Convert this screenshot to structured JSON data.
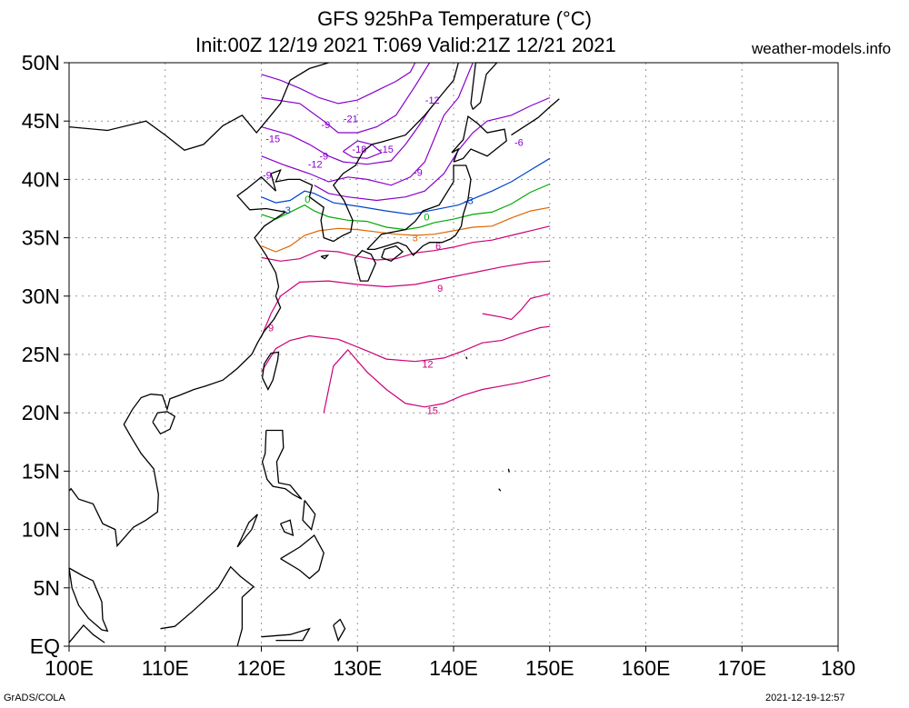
{
  "title": {
    "line1": "GFS 925hPa Temperature (°C)",
    "line2": "Init:00Z 12/19 2021 T:069 Valid:21Z 12/21 2021",
    "site": "weather-models.info"
  },
  "footer": {
    "left": "GrADS/COLA",
    "right": "2021-12-19-12:57"
  },
  "axes": {
    "lat_labels": [
      "50N",
      "45N",
      "40N",
      "35N",
      "30N",
      "25N",
      "20N",
      "15N",
      "10N",
      "5N",
      "EQ"
    ],
    "lat_values": [
      50,
      45,
      40,
      35,
      30,
      25,
      20,
      15,
      10,
      5,
      0
    ],
    "lon_labels": [
      "100E",
      "110E",
      "120E",
      "130E",
      "140E",
      "150E",
      "160E",
      "170E",
      "180"
    ],
    "lon_values": [
      100,
      110,
      120,
      130,
      140,
      150,
      160,
      170,
      180
    ],
    "lon_range": [
      100,
      180
    ],
    "lat_range": [
      0,
      50
    ],
    "grid": "dotted"
  },
  "contour_labels": [
    {
      "text": "-12",
      "lon": 137.8,
      "lat": 46.8,
      "color": "#8800cc"
    },
    {
      "text": "-21",
      "lon": 129.3,
      "lat": 45.2,
      "color": "#8800cc"
    },
    {
      "text": "-9",
      "lon": 126.7,
      "lat": 44.7,
      "color": "#8800cc"
    },
    {
      "text": "-15",
      "lon": 121.2,
      "lat": 43.5,
      "color": "#8800cc"
    },
    {
      "text": "-18",
      "lon": 130.2,
      "lat": 42.6,
      "color": "#8800cc"
    },
    {
      "text": "-15",
      "lon": 133.0,
      "lat": 42.6,
      "color": "#8800cc"
    },
    {
      "text": "-9",
      "lon": 126.5,
      "lat": 42.0,
      "color": "#8800cc"
    },
    {
      "text": "-12",
      "lon": 125.6,
      "lat": 41.3,
      "color": "#8800cc"
    },
    {
      "text": "-9",
      "lon": 120.6,
      "lat": 40.4,
      "color": "#8800cc"
    },
    {
      "text": "-9",
      "lon": 136.3,
      "lat": 40.6,
      "color": "#8800cc"
    },
    {
      "text": "-6",
      "lon": 146.8,
      "lat": 43.2,
      "color": "#8800cc"
    },
    {
      "text": "-3",
      "lon": 122.6,
      "lat": 37.4,
      "color": "#0044cc"
    },
    {
      "text": "-3",
      "lon": 141.6,
      "lat": 38.2,
      "color": "#0044cc"
    },
    {
      "text": "0",
      "lon": 124.8,
      "lat": 38.3,
      "color": "#00aa00"
    },
    {
      "text": "0",
      "lon": 137.2,
      "lat": 36.8,
      "color": "#00aa00"
    },
    {
      "text": "3",
      "lon": 136.0,
      "lat": 35.0,
      "color": "#dd6600"
    },
    {
      "text": "6",
      "lon": 138.4,
      "lat": 34.3,
      "color": "#cc00aa"
    },
    {
      "text": "9",
      "lon": 138.6,
      "lat": 30.7,
      "color": "#cc0077"
    },
    {
      "text": "9",
      "lon": 121.0,
      "lat": 27.3,
      "color": "#cc0077"
    },
    {
      "text": "12",
      "lon": 137.3,
      "lat": 24.2,
      "color": "#cc0077"
    },
    {
      "text": "15",
      "lon": 137.8,
      "lat": 20.2,
      "color": "#cc0077"
    }
  ],
  "colors": {
    "purple_cold": "#8800cc",
    "blue_minus3": "#0044cc",
    "green_zero": "#00aa00",
    "orange_3": "#dd6600",
    "magenta_warm": "#cc0077",
    "coast": "#000000",
    "grid": "#888888"
  }
}
